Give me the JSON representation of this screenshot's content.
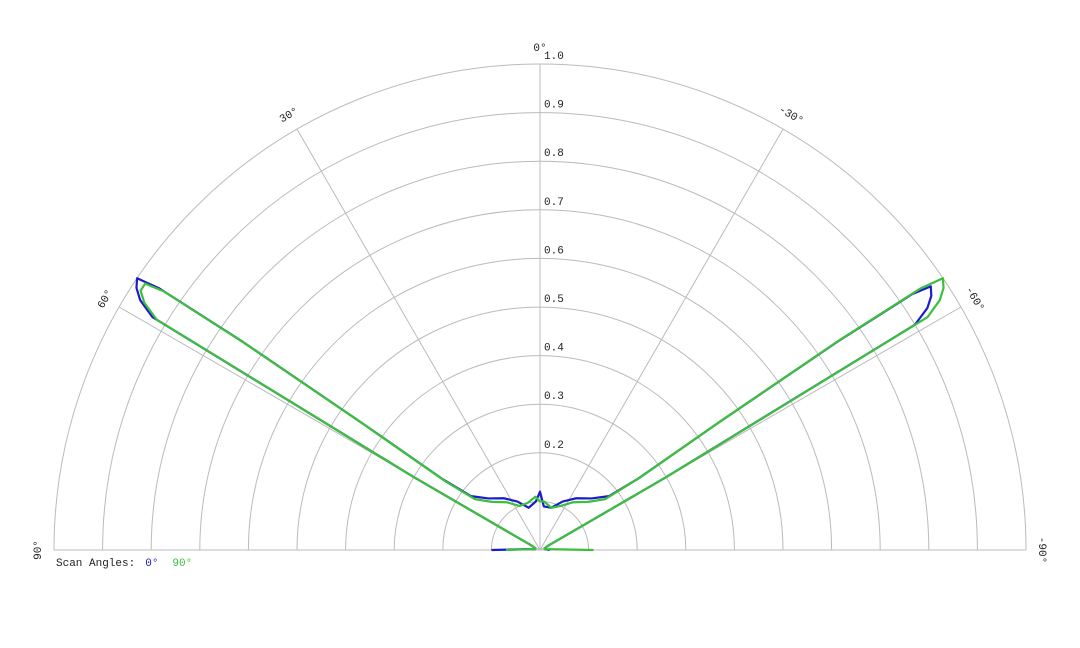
{
  "chart_data": {
    "type": "polar",
    "thetalim": [
      -90,
      90
    ],
    "thetaticks": [
      {
        "value": 90,
        "label": "90°"
      },
      {
        "value": 60,
        "label": "60°"
      },
      {
        "value": 30,
        "label": "30°"
      },
      {
        "value": 0,
        "label": "0°"
      },
      {
        "value": -30,
        "label": "-30°"
      },
      {
        "value": -60,
        "label": "-60°"
      },
      {
        "value": -90,
        "label": "-90°"
      }
    ],
    "rlim": [
      0,
      1
    ],
    "rminor_ticks": [
      0.1
    ],
    "rticks": [
      0.2,
      0.3,
      0.4,
      0.5,
      0.6,
      0.7,
      0.8,
      0.9,
      {
        "value": 1,
        "label": "1.0"
      }
    ],
    "grid": true,
    "legend_title": "Scan Angles:",
    "theta": [
      90,
      85,
      80,
      70,
      62,
      60,
      59,
      58,
      57,
      56,
      55.5,
      55,
      54.5,
      54,
      52,
      45,
      35,
      25,
      15,
      5,
      0,
      -5,
      -15,
      -25,
      -35,
      -45,
      -52,
      -54,
      -54.5,
      -55,
      -55.5,
      -56,
      -57,
      -58,
      -59,
      -60,
      -62,
      -70,
      -80,
      -90
    ],
    "series": [
      {
        "name": "0°",
        "color": "#1c1ccc",
        "values": [
          0.1,
          0.02,
          0.01,
          0.01,
          0.02,
          0.3,
          0.93,
          0.97,
          0.99,
          1.0,
          0.95,
          0.75,
          0.45,
          0.25,
          0.18,
          0.15,
          0.13,
          0.11,
          0.09,
          0.1,
          0.12,
          0.09,
          0.09,
          0.11,
          0.13,
          0.15,
          0.18,
          0.25,
          0.45,
          0.75,
          0.93,
          0.97,
          0.96,
          0.94,
          0.9,
          0.3,
          0.02,
          0.01,
          0.01,
          0.02
        ]
      },
      {
        "name": "90°",
        "color": "#3cbf3c",
        "values": [
          0.07,
          0.02,
          0.01,
          0.01,
          0.02,
          0.3,
          0.92,
          0.96,
          0.98,
          0.98,
          0.94,
          0.74,
          0.44,
          0.24,
          0.17,
          0.14,
          0.12,
          0.1,
          0.1,
          0.11,
          0.1,
          0.1,
          0.09,
          0.1,
          0.12,
          0.14,
          0.17,
          0.25,
          0.46,
          0.76,
          0.95,
          1.0,
          0.99,
          0.97,
          0.93,
          0.3,
          0.02,
          0.01,
          0.01,
          0.11
        ]
      }
    ]
  }
}
